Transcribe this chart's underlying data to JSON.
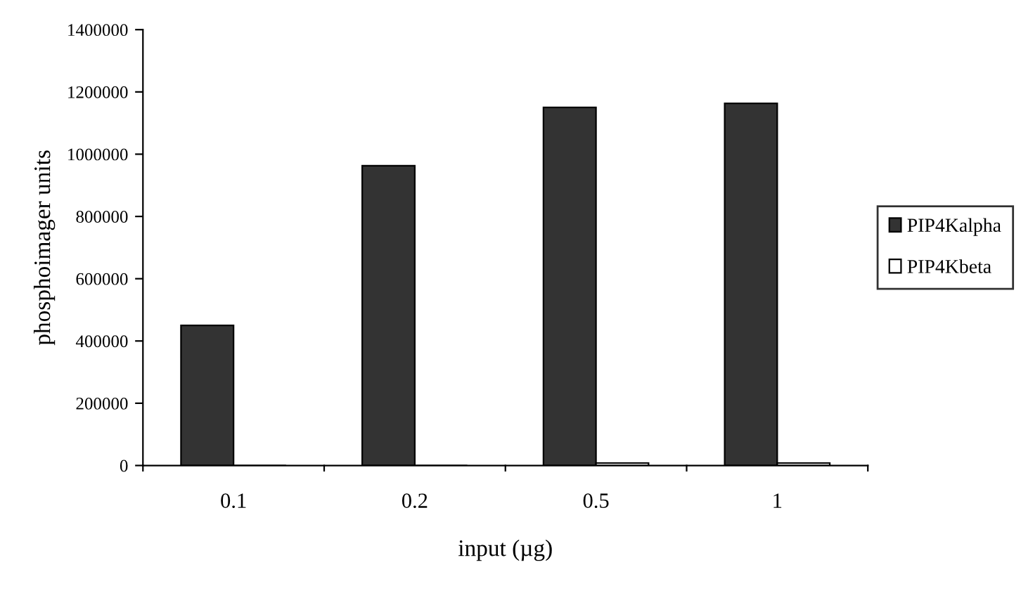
{
  "chart_data": {
    "type": "bar",
    "xlabel": "input (µg)",
    "ylabel": "phosphoimager units",
    "categories": [
      "0.1",
      "0.2",
      "0.5",
      "1"
    ],
    "series": [
      {
        "name": "PIP4Kalpha",
        "color": "#333333",
        "values": [
          450000,
          963000,
          1150000,
          1163000
        ]
      },
      {
        "name": "PIP4Kbeta",
        "color": "#ffffff",
        "values": [
          0,
          0,
          8000,
          8000
        ]
      }
    ],
    "ylim": [
      0,
      1400000
    ],
    "yticks": [
      0,
      200000,
      400000,
      600000,
      800000,
      1000000,
      1200000,
      1400000
    ],
    "grid": false,
    "legend": "right"
  }
}
